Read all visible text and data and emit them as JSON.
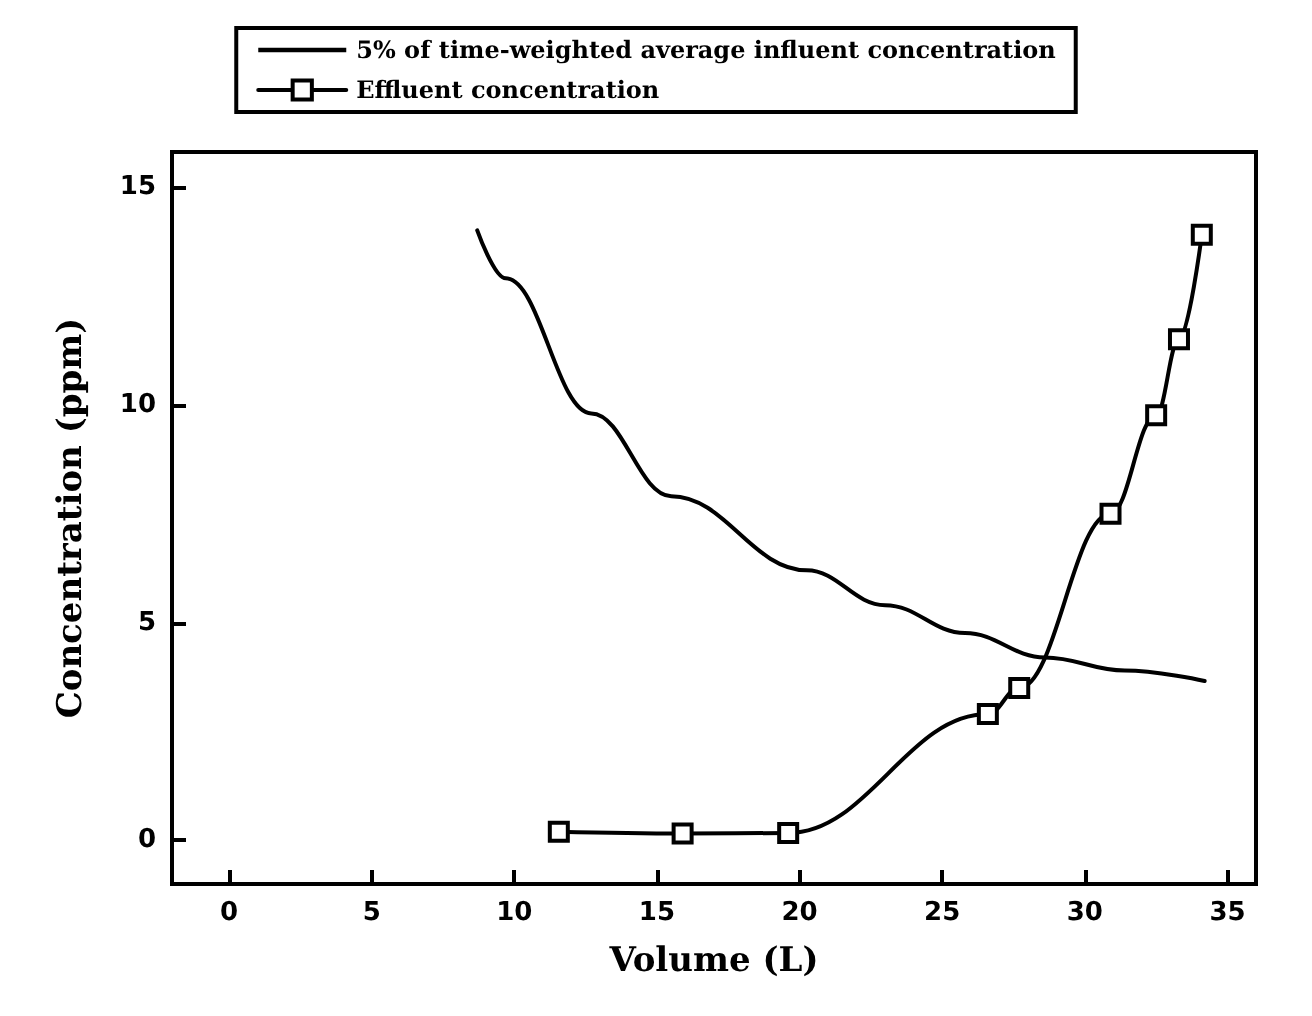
{
  "chart_data": {
    "type": "line",
    "xlabel": "Volume (L)",
    "ylabel": "Concentration (ppm)",
    "xlim": [
      -2,
      36
    ],
    "xticks": [
      0,
      5,
      10,
      15,
      20,
      25,
      30,
      35
    ],
    "ylim": [
      -1,
      15.8
    ],
    "yticks": [
      0,
      5,
      10,
      15
    ],
    "grid": false,
    "legend": "top",
    "line_style": "solid",
    "series": [
      {
        "name": "5% of time-weighted average influent concentration",
        "color": "#000000",
        "marker": "none",
        "x": [
          8.7,
          9.7,
          12.7,
          15.5,
          20.25,
          23.0,
          25.8,
          28.6,
          31.4,
          34.2
        ],
        "values": [
          14.0,
          12.9,
          9.8,
          7.9,
          6.2,
          5.4,
          4.76,
          4.2,
          3.9,
          3.66
        ]
      },
      {
        "name": "Effluent concentration",
        "color": "#000000",
        "marker": "square",
        "x": [
          11.56,
          15.9,
          19.6,
          26.6,
          27.7,
          30.9,
          32.5,
          33.3,
          34.1
        ],
        "values": [
          0.2,
          0.16,
          0.17,
          2.9,
          3.5,
          7.5,
          9.76,
          11.5,
          13.9
        ]
      }
    ]
  }
}
